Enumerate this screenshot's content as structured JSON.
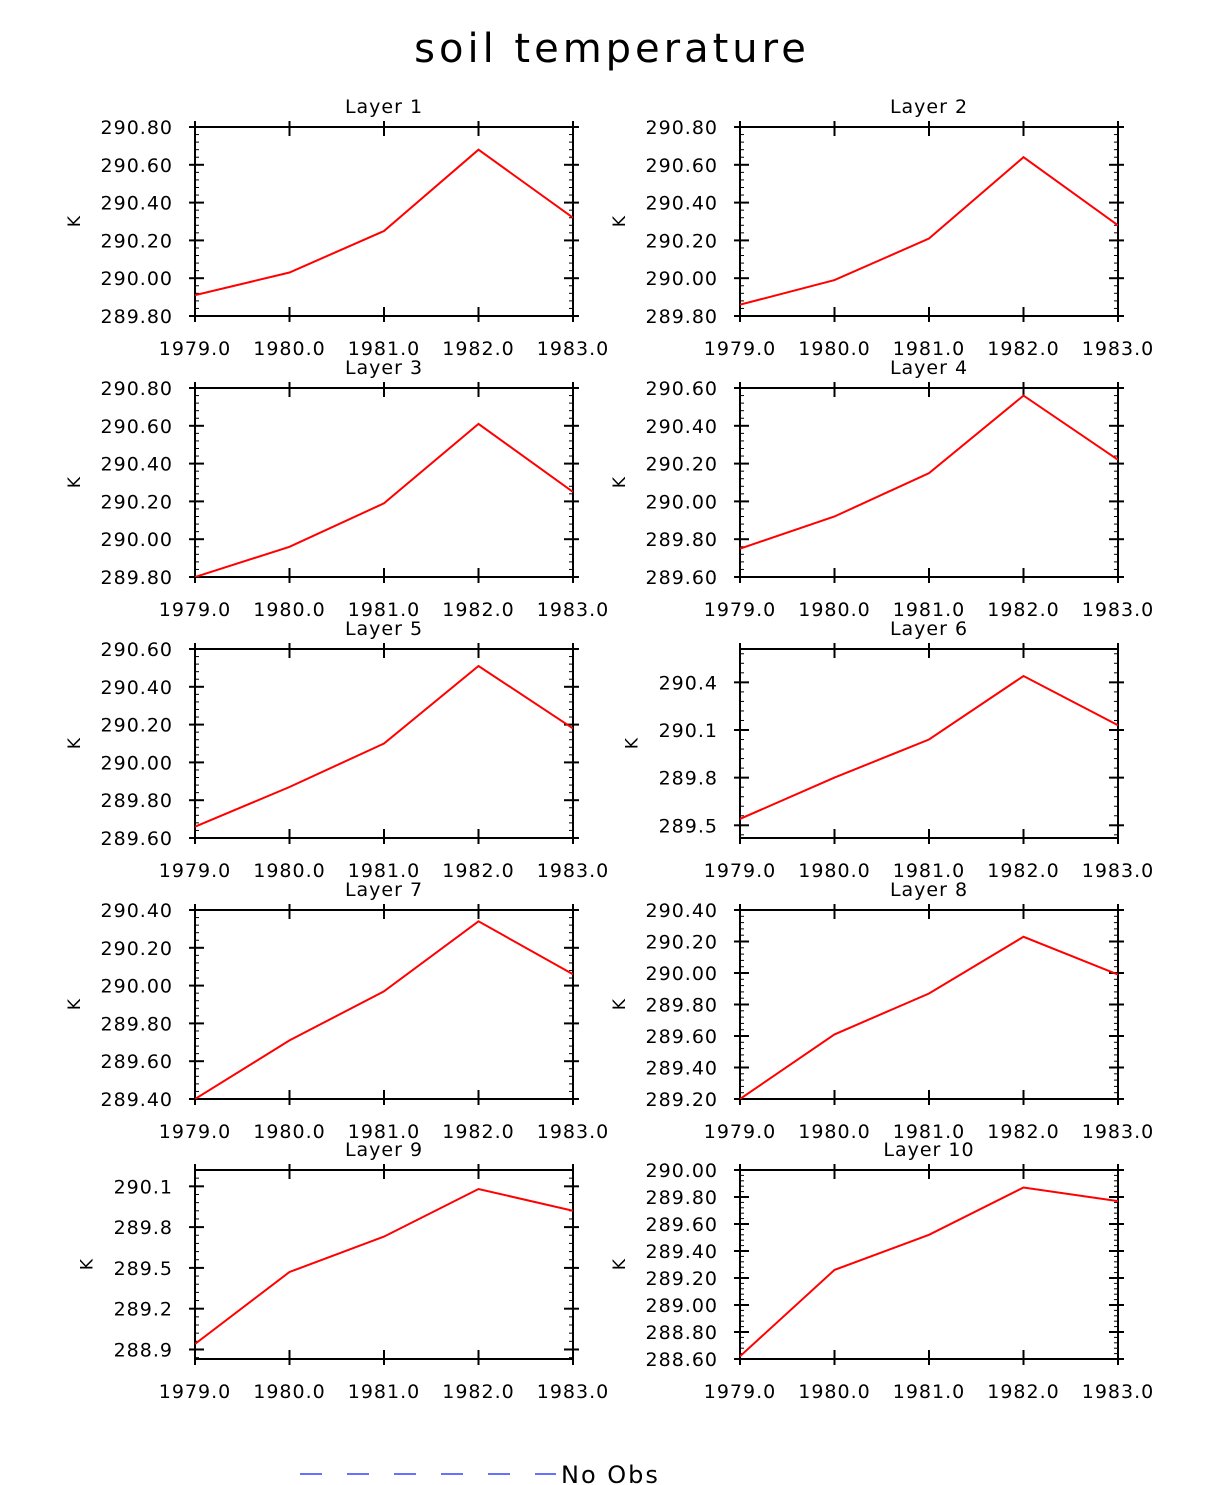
{
  "title": "soil temperature",
  "legend": {
    "label": "No Obs",
    "color": "#3344ff"
  },
  "series_color": "#ff0000",
  "chart_data": [
    {
      "type": "line",
      "title": "Layer 1",
      "ylabel": "K",
      "x": [
        1979.0,
        1980.0,
        1981.0,
        1982.0,
        1983.0
      ],
      "x_tick_labels": [
        "1979.0",
        "1980.0",
        "1981.0",
        "1982.0",
        "1983.0"
      ],
      "y": [
        289.91,
        290.03,
        290.25,
        290.68,
        290.32
      ],
      "ylim": [
        289.8,
        290.8
      ],
      "yticks": [
        289.8,
        290.0,
        290.2,
        290.4,
        290.6,
        290.8
      ],
      "ytick_labels": [
        "289.80",
        "290.00",
        "290.20",
        "290.40",
        "290.60",
        "290.80"
      ]
    },
    {
      "type": "line",
      "title": "Layer 2",
      "ylabel": "K",
      "x": [
        1979.0,
        1980.0,
        1981.0,
        1982.0,
        1983.0
      ],
      "x_tick_labels": [
        "1979.0",
        "1980.0",
        "1981.0",
        "1982.0",
        "1983.0"
      ],
      "y": [
        289.86,
        289.99,
        290.21,
        290.64,
        290.28
      ],
      "ylim": [
        289.8,
        290.8
      ],
      "yticks": [
        289.8,
        290.0,
        290.2,
        290.4,
        290.6,
        290.8
      ],
      "ytick_labels": [
        "289.80",
        "290.00",
        "290.20",
        "290.40",
        "290.60",
        "290.80"
      ]
    },
    {
      "type": "line",
      "title": "Layer 3",
      "ylabel": "K",
      "x": [
        1979.0,
        1980.0,
        1981.0,
        1982.0,
        1983.0
      ],
      "x_tick_labels": [
        "1979.0",
        "1980.0",
        "1981.0",
        "1982.0",
        "1983.0"
      ],
      "y": [
        289.8,
        289.96,
        290.19,
        290.61,
        290.25
      ],
      "ylim": [
        289.8,
        290.8
      ],
      "yticks": [
        289.8,
        290.0,
        290.2,
        290.4,
        290.6,
        290.8
      ],
      "ytick_labels": [
        "289.80",
        "290.00",
        "290.20",
        "290.40",
        "290.60",
        "290.80"
      ]
    },
    {
      "type": "line",
      "title": "Layer 4",
      "ylabel": "K",
      "x": [
        1979.0,
        1980.0,
        1981.0,
        1982.0,
        1983.0
      ],
      "x_tick_labels": [
        "1979.0",
        "1980.0",
        "1981.0",
        "1982.0",
        "1983.0"
      ],
      "y": [
        289.75,
        289.92,
        290.15,
        290.56,
        290.22
      ],
      "ylim": [
        289.6,
        290.6
      ],
      "yticks": [
        289.6,
        289.8,
        290.0,
        290.2,
        290.4,
        290.6
      ],
      "ytick_labels": [
        "289.60",
        "289.80",
        "290.00",
        "290.20",
        "290.40",
        "290.60"
      ]
    },
    {
      "type": "line",
      "title": "Layer 5",
      "ylabel": "K",
      "x": [
        1979.0,
        1980.0,
        1981.0,
        1982.0,
        1983.0
      ],
      "x_tick_labels": [
        "1979.0",
        "1980.0",
        "1981.0",
        "1982.0",
        "1983.0"
      ],
      "y": [
        289.66,
        289.87,
        290.1,
        290.51,
        290.18
      ],
      "ylim": [
        289.6,
        290.6
      ],
      "yticks": [
        289.6,
        289.8,
        290.0,
        290.2,
        290.4,
        290.6
      ],
      "ytick_labels": [
        "289.60",
        "289.80",
        "290.00",
        "290.20",
        "290.40",
        "290.60"
      ]
    },
    {
      "type": "line",
      "title": "Layer 6",
      "ylabel": "K",
      "x": [
        1979.0,
        1980.0,
        1981.0,
        1982.0,
        1983.0
      ],
      "x_tick_labels": [
        "1979.0",
        "1980.0",
        "1981.0",
        "1982.0",
        "1983.0"
      ],
      "y": [
        289.54,
        289.8,
        290.04,
        290.44,
        290.13
      ],
      "ylim": [
        289.42,
        290.61
      ],
      "yticks": [
        289.5,
        289.8,
        290.1,
        290.4
      ],
      "ytick_labels": [
        "289.5",
        "289.8",
        "290.1",
        "290.4"
      ]
    },
    {
      "type": "line",
      "title": "Layer 7",
      "ylabel": "K",
      "x": [
        1979.0,
        1980.0,
        1981.0,
        1982.0,
        1983.0
      ],
      "x_tick_labels": [
        "1979.0",
        "1980.0",
        "1981.0",
        "1982.0",
        "1983.0"
      ],
      "y": [
        289.4,
        289.71,
        289.97,
        290.34,
        290.06
      ],
      "ylim": [
        289.4,
        290.4
      ],
      "yticks": [
        289.4,
        289.6,
        289.8,
        290.0,
        290.2,
        290.4
      ],
      "ytick_labels": [
        "289.40",
        "289.60",
        "289.80",
        "290.00",
        "290.20",
        "290.40"
      ]
    },
    {
      "type": "line",
      "title": "Layer 8",
      "ylabel": "K",
      "x": [
        1979.0,
        1980.0,
        1981.0,
        1982.0,
        1983.0
      ],
      "x_tick_labels": [
        "1979.0",
        "1980.0",
        "1981.0",
        "1982.0",
        "1983.0"
      ],
      "y": [
        289.2,
        289.61,
        289.87,
        290.23,
        289.99
      ],
      "ylim": [
        289.2,
        290.4
      ],
      "yticks": [
        289.2,
        289.4,
        289.6,
        289.8,
        290.0,
        290.2,
        290.4
      ],
      "ytick_labels": [
        "289.20",
        "289.40",
        "289.60",
        "289.80",
        "290.00",
        "290.20",
        "290.40"
      ]
    },
    {
      "type": "line",
      "title": "Layer 9",
      "ylabel": "K",
      "x": [
        1979.0,
        1980.0,
        1981.0,
        1982.0,
        1983.0
      ],
      "x_tick_labels": [
        "1979.0",
        "1980.0",
        "1981.0",
        "1982.0",
        "1983.0"
      ],
      "y": [
        288.94,
        289.47,
        289.73,
        290.08,
        289.92
      ],
      "ylim": [
        288.83,
        290.22
      ],
      "yticks": [
        288.9,
        289.2,
        289.5,
        289.8,
        290.1
      ],
      "ytick_labels": [
        "288.9",
        "289.2",
        "289.5",
        "289.8",
        "290.1"
      ]
    },
    {
      "type": "line",
      "title": "Layer 10",
      "ylabel": "K",
      "x": [
        1979.0,
        1980.0,
        1981.0,
        1982.0,
        1983.0
      ],
      "x_tick_labels": [
        "1979.0",
        "1980.0",
        "1981.0",
        "1982.0",
        "1983.0"
      ],
      "y": [
        288.62,
        289.26,
        289.52,
        289.87,
        289.77
      ],
      "ylim": [
        288.6,
        290.0
      ],
      "yticks": [
        288.6,
        288.8,
        289.0,
        289.2,
        289.4,
        289.6,
        289.8,
        290.0
      ],
      "ytick_labels": [
        "288.60",
        "288.80",
        "289.00",
        "289.20",
        "289.40",
        "289.60",
        "289.80",
        "290.00"
      ]
    }
  ]
}
